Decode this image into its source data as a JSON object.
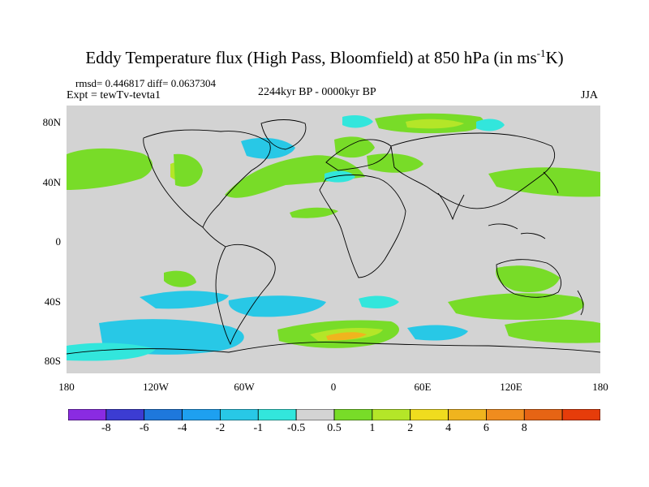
{
  "title": {
    "main": "Eddy Temperature flux (High Pass, Bloomfield) at 850 hPa (in ms",
    "sup": "-1",
    "end": "K)"
  },
  "stats": "rmsd= 0.446817 diff= 0.0637304",
  "experiment": "Expt = tewTv-tevta1",
  "period": "2244kyr BP - 0000kyr BP",
  "season": "JJA",
  "map": {
    "background_color": "#d3d3d3",
    "y_ticks": [
      "80N",
      "40N",
      "0",
      "40S",
      "80S"
    ],
    "x_ticks": [
      "180",
      "120W",
      "60W",
      "0",
      "60E",
      "120E",
      "180"
    ]
  },
  "colorbar": {
    "colors": [
      "#8a2be2",
      "#3c3cd2",
      "#1e78dc",
      "#1ea0f0",
      "#28c8e6",
      "#32e6dc",
      "#d3d3d3",
      "#78dc28",
      "#b4e628",
      "#f0dc1e",
      "#f0b41e",
      "#f08c1e",
      "#e66414",
      "#e63c0a"
    ],
    "labels": [
      "-8",
      "-6",
      "-4",
      "-2",
      "-1",
      "-0.5",
      "0.5",
      "1",
      "2",
      "4",
      "6",
      "8"
    ]
  }
}
